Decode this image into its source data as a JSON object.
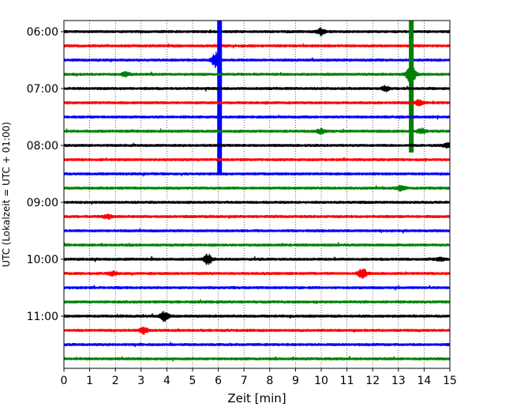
{
  "chart_data": {
    "type": "line",
    "title": "",
    "xlabel": "Zeit  [min]",
    "ylabel": "UTC (Lokalzeit = UTC + 01:00)",
    "xlim": [
      0,
      15
    ],
    "x_ticks": [
      "0",
      "1",
      "2",
      "3",
      "4",
      "5",
      "6",
      "7",
      "8",
      "9",
      "10",
      "11",
      "12",
      "13",
      "14",
      "15"
    ],
    "y_ticks": [
      "06:00",
      "07:00",
      "08:00",
      "09:00",
      "10:00",
      "11:00"
    ],
    "grid": "vertical dotted",
    "colors": [
      "#000000",
      "#ff0000",
      "#0000ff",
      "#008000"
    ],
    "trace_interval_min": 15,
    "trace_start_times": [
      "06:00",
      "06:15",
      "06:30",
      "06:45",
      "07:00",
      "07:15",
      "07:30",
      "07:45",
      "08:00",
      "08:15",
      "08:30",
      "08:45",
      "09:00",
      "09:15",
      "09:30",
      "09:45",
      "10:00",
      "10:15",
      "10:30",
      "10:45",
      "11:00",
      "11:15",
      "11:30",
      "11:45"
    ],
    "events": [
      {
        "trace": "06:00",
        "minute": 10.0,
        "amplitude": 0.9
      },
      {
        "trace": "06:30",
        "minute": 5.9,
        "amplitude": 2.0
      },
      {
        "trace": "06:45",
        "minute": 13.5,
        "amplitude": 3.2
      },
      {
        "trace": "06:45",
        "minute": 2.4,
        "amplitude": 0.6
      },
      {
        "trace": "07:00",
        "minute": 12.5,
        "amplitude": 0.6
      },
      {
        "trace": "07:15",
        "minute": 13.8,
        "amplitude": 0.7
      },
      {
        "trace": "07:45",
        "minute": 10.0,
        "amplitude": 0.6
      },
      {
        "trace": "07:45",
        "minute": 13.9,
        "amplitude": 0.6
      },
      {
        "trace": "08:00",
        "minute": 14.9,
        "amplitude": 0.6
      },
      {
        "trace": "08:45",
        "minute": 13.1,
        "amplitude": 0.6
      },
      {
        "trace": "09:15",
        "minute": 1.7,
        "amplitude": 0.5
      },
      {
        "trace": "10:00",
        "minute": 5.6,
        "amplitude": 1.4
      },
      {
        "trace": "10:00",
        "minute": 14.6,
        "amplitude": 0.5
      },
      {
        "trace": "10:15",
        "minute": 11.6,
        "amplitude": 1.4
      },
      {
        "trace": "10:15",
        "minute": 1.9,
        "amplitude": 0.5
      },
      {
        "trace": "11:00",
        "minute": 3.9,
        "amplitude": 1.3
      },
      {
        "trace": "11:15",
        "minute": 3.1,
        "amplitude": 0.8
      }
    ],
    "spikes": [
      {
        "trace": "06:30",
        "minute": 6.05,
        "amplitude": 8.0
      },
      {
        "trace": "06:45",
        "minute": 13.5,
        "amplitude": 5.5
      }
    ]
  }
}
